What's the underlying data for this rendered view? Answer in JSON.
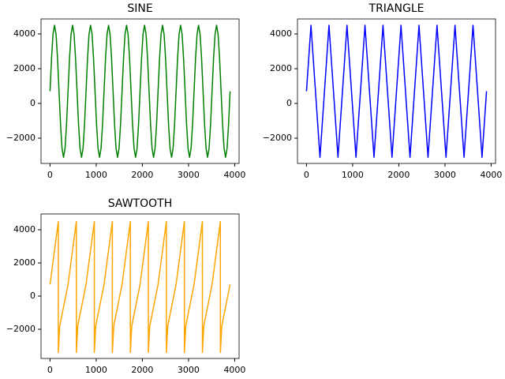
{
  "chart_data": [
    {
      "type": "line",
      "title": "SINE",
      "color": "green",
      "x": [
        0,
        32.5,
        65,
        97.5,
        130,
        162.5,
        195,
        227.5,
        260,
        292.5,
        325,
        357.5,
        390,
        422.5,
        455,
        487.5,
        520,
        552.5,
        585,
        617.5,
        650,
        682.5,
        715,
        747.5,
        780,
        812.5,
        845,
        877.5,
        910,
        942.5,
        975,
        1007.5,
        1040,
        1072.5,
        1105,
        1137.5,
        1170,
        1202.5,
        1235,
        1267.5,
        1300,
        1332.5,
        1365,
        1397.5,
        1430,
        1462.5,
        1495,
        1527.5,
        1560,
        1592.5,
        1625,
        1657.5,
        1690,
        1722.5,
        1755,
        1787.5,
        1820,
        1852.5,
        1885,
        1917.5,
        1950,
        1982.5,
        2015,
        2047.5,
        2080,
        2112.5,
        2145,
        2177.5,
        2210,
        2242.5,
        2275,
        2307.5,
        2340,
        2372.5,
        2405,
        2437.5,
        2470,
        2502.5,
        2535,
        2567.5,
        2600,
        2632.5,
        2665,
        2697.5,
        2730,
        2762.5,
        2795,
        2827.5,
        2860,
        2892.5,
        2925,
        2957.5,
        2990,
        3022.5,
        3055,
        3087.5,
        3120,
        3152.5,
        3185,
        3217.5,
        3250,
        3282.5,
        3315,
        3347.5,
        3380,
        3412.5,
        3445,
        3477.5,
        3510,
        3542.5,
        3575,
        3607.5,
        3640,
        3672.5,
        3705,
        3737.5,
        3770,
        3802.5,
        3835,
        3867.5,
        3900
      ],
      "values": [
        700,
        2600,
        3991,
        4500,
        3991,
        2600,
        700,
        -1200,
        -2591,
        -3100,
        -2591,
        -1200,
        700,
        2600,
        3991,
        4500,
        3991,
        2600,
        700,
        -1200,
        -2591,
        -3100,
        -2591,
        -1200,
        700,
        2600,
        3991,
        4500,
        3991,
        2600,
        700,
        -1200,
        -2591,
        -3100,
        -2591,
        -1200,
        700,
        2600,
        3991,
        4500,
        3991,
        2600,
        700,
        -1200,
        -2591,
        -3100,
        -2591,
        -1200,
        700,
        2600,
        3991,
        4500,
        3991,
        2600,
        700,
        -1200,
        -2591,
        -3100,
        -2591,
        -1200,
        700,
        2600,
        3991,
        4500,
        3991,
        2600,
        700,
        -1200,
        -2591,
        -3100,
        -2591,
        -1200,
        700,
        2600,
        3991,
        4500,
        3991,
        2600,
        700,
        -1200,
        -2591,
        -3100,
        -2591,
        -1200,
        700,
        2600,
        3991,
        4500,
        3991,
        2600,
        700,
        -1200,
        -2591,
        -3100,
        -2591,
        -1200,
        700,
        2600,
        3991,
        4500,
        3991,
        2600,
        700,
        -1200,
        -2591,
        -3100,
        -2591,
        -1200,
        700,
        2600,
        3991,
        4500,
        3991,
        2600,
        700,
        -1200,
        -2591,
        -3100,
        -2591,
        -1200,
        700
      ],
      "xlim": [
        -195,
        4095
      ],
      "ylim": [
        -3455,
        4864
      ],
      "xticks": [
        0,
        1000,
        2000,
        3000,
        4000
      ],
      "yticks": [
        {
          "value": -2000,
          "label": "−2000"
        },
        0,
        2000,
        4000
      ]
    },
    {
      "type": "line",
      "title": "TRIANGLE",
      "color": "blue",
      "x": [
        0,
        97.5,
        292.5,
        487.5,
        682.5,
        877.5,
        1072.5,
        1267.5,
        1462.5,
        1657.5,
        1852.5,
        2047.5,
        2242.5,
        2437.5,
        2632.5,
        2827.5,
        3022.5,
        3217.5,
        3412.5,
        3607.5,
        3802.5,
        3900
      ],
      "values": [
        700,
        4500,
        -3100,
        4500,
        -3100,
        4500,
        -3100,
        4500,
        -3100,
        4500,
        -3100,
        4500,
        -3100,
        4500,
        -3100,
        4500,
        -3100,
        4500,
        -3100,
        4500,
        -3100,
        700
      ],
      "xlim": [
        -195,
        4095
      ],
      "ylim": [
        -3455,
        4864
      ],
      "xticks": [
        0,
        1000,
        2000,
        3000,
        4000
      ],
      "yticks": [
        {
          "value": -2000,
          "label": "−2000"
        },
        0,
        2000,
        4000
      ]
    },
    {
      "type": "line",
      "title": "SAWTOOTH",
      "color": "orange",
      "x": [
        0,
        180,
        180,
        210,
        390,
        570,
        570,
        600,
        780,
        960,
        960,
        990,
        1170,
        1350,
        1350,
        1380,
        1560,
        1740,
        1740,
        1770,
        1950,
        2130,
        2130,
        2160,
        2340,
        2520,
        2520,
        2550,
        2730,
        2910,
        2910,
        2940,
        3120,
        3300,
        3300,
        3330,
        3510,
        3690,
        3690,
        3720,
        3900
      ],
      "values": [
        700,
        4500,
        -3400,
        -1800,
        700,
        4500,
        -3400,
        -1800,
        700,
        4500,
        -3400,
        -1800,
        700,
        4500,
        -3400,
        -1800,
        700,
        4500,
        -3400,
        -1800,
        700,
        4500,
        -3400,
        -1800,
        700,
        4500,
        -3400,
        -1800,
        700,
        4500,
        -3400,
        -1800,
        700,
        4500,
        -3400,
        -1800,
        700,
        4500,
        -3400,
        -1800,
        700
      ],
      "xlim": [
        -195,
        4095
      ],
      "ylim": [
        -3762,
        4952
      ],
      "xticks": [
        0,
        1000,
        2000,
        3000,
        4000
      ],
      "yticks": [
        {
          "value": -2000,
          "label": "−2000"
        },
        0,
        2000,
        4000
      ]
    }
  ]
}
